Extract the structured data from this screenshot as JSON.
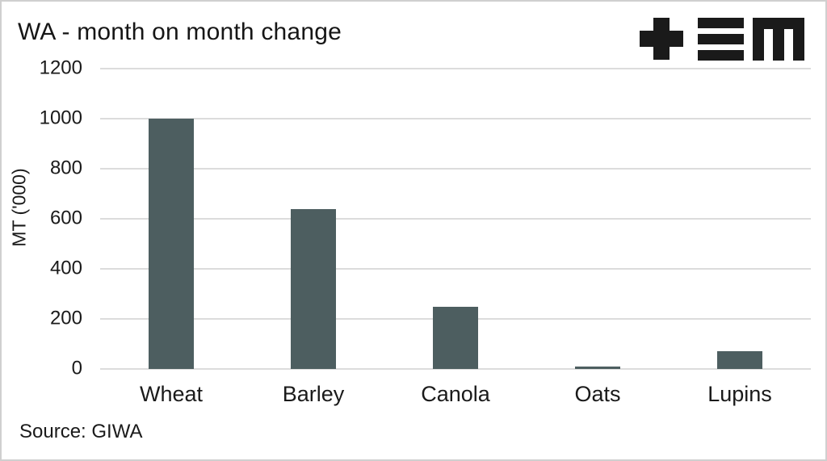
{
  "header": {
    "title": "WA - month on month change",
    "logo": {
      "name": "tem-logo",
      "glyphs": [
        "plus",
        "triple-bar",
        "m-mark"
      ],
      "color": "#1a1a1a"
    }
  },
  "chart_data": {
    "type": "bar",
    "title": "WA - month on month change",
    "categories": [
      "Wheat",
      "Barley",
      "Canola",
      "Oats",
      "Lupins"
    ],
    "values": [
      1000,
      640,
      250,
      10,
      70
    ],
    "xlabel": "",
    "ylabel": "MT ('000)",
    "ylim": [
      0,
      1200
    ],
    "yticks": [
      0,
      200,
      400,
      600,
      800,
      1000,
      1200
    ],
    "grid": true,
    "legend": false,
    "bar_color": "#4d5e60",
    "gridline_color": "#dcdcdc"
  },
  "footer": {
    "source": "Source: GIWA"
  }
}
